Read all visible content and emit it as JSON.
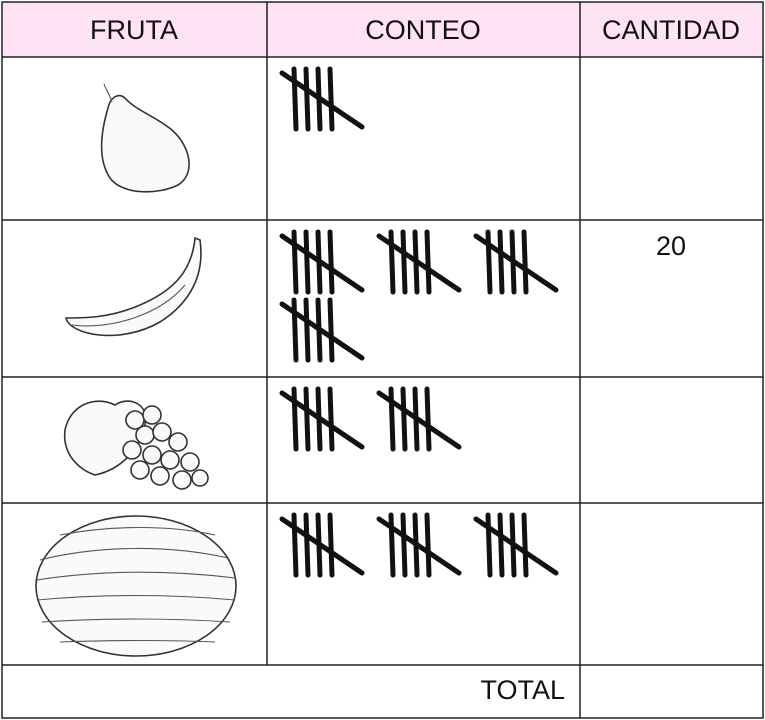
{
  "table": {
    "header": [
      "FRUTA",
      "CONTEO",
      "CANTIDAD"
    ],
    "rows": [
      {
        "tally": 5
      },
      {
        "tally": 20,
        "cantidad": 20
      },
      {
        "tally": 10
      },
      {
        "tally": 15
      }
    ],
    "total": "TOTAL"
  }
}
